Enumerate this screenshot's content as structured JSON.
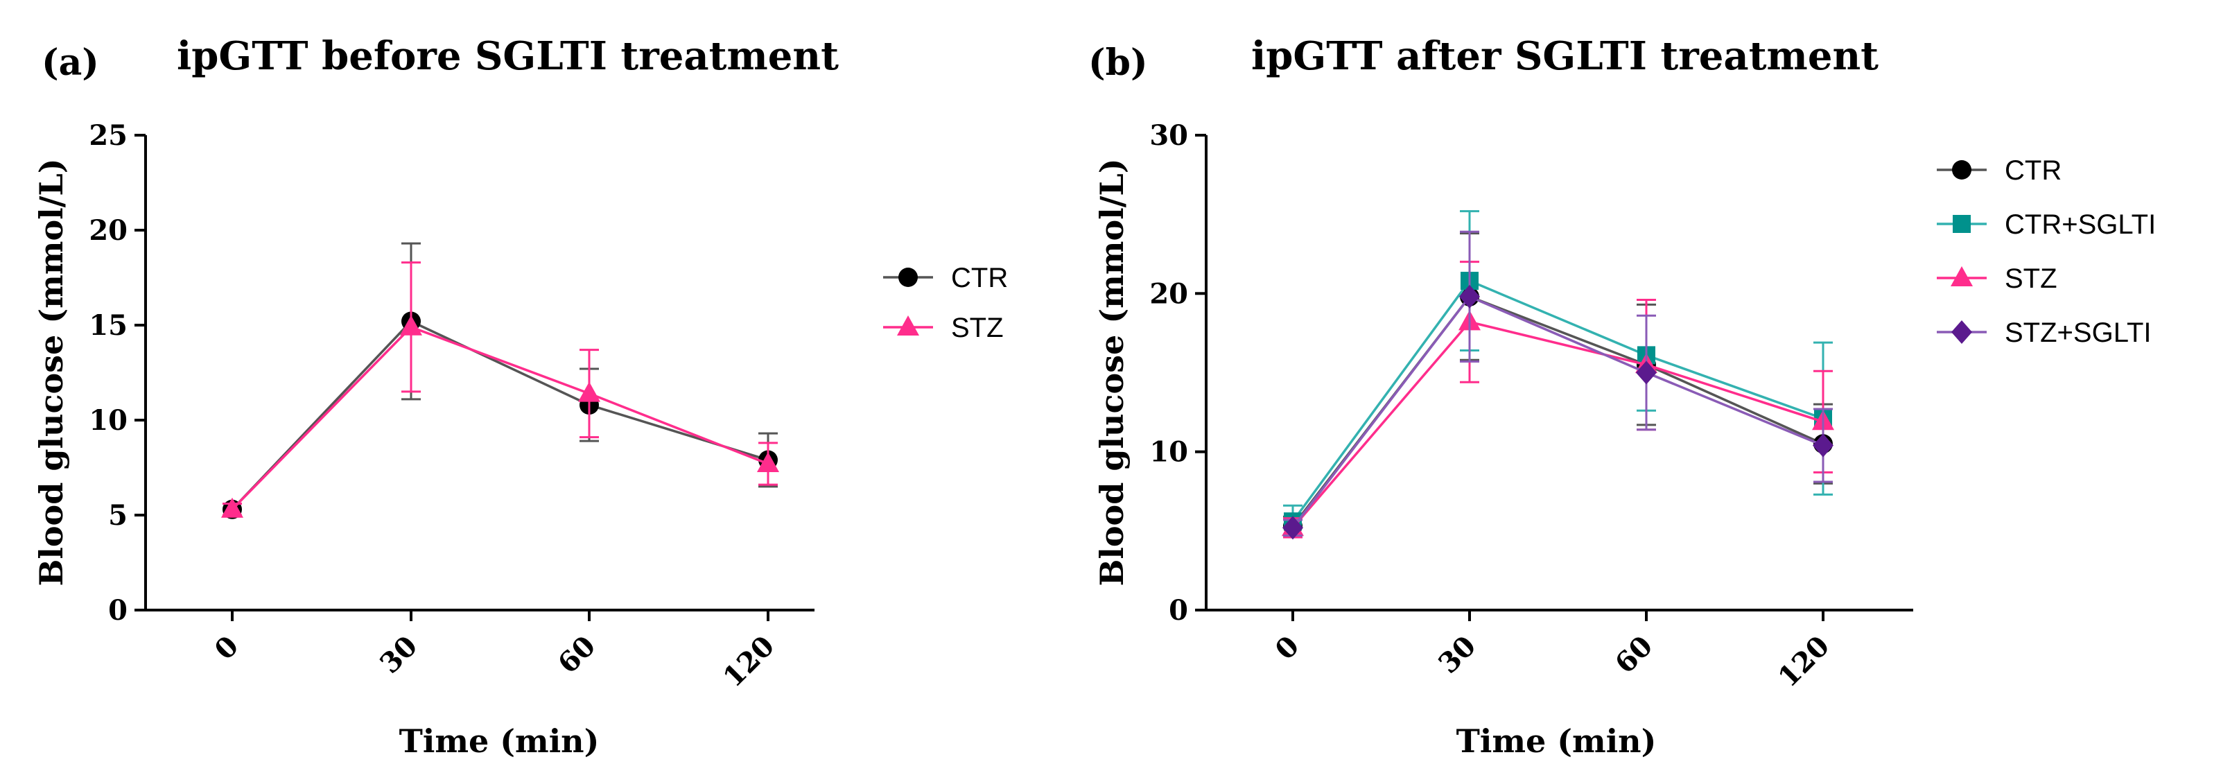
{
  "chart_data": [
    {
      "panel_label": "(a)",
      "type": "line",
      "title": "ipGTT before SGLTI treatment",
      "xlabel": "Time (min)",
      "ylabel": "Blood glucose (mmol/L)",
      "categories": [
        "0",
        "30",
        "60",
        "120"
      ],
      "ylim": [
        0,
        25
      ],
      "yticks": [
        0,
        5,
        10,
        15,
        20,
        25
      ],
      "legend_position": "right",
      "series": [
        {
          "name": "CTR",
          "marker": "circle",
          "color": "#000000",
          "line_color": "#555555",
          "values": [
            5.3,
            15.2,
            10.8,
            7.9
          ],
          "errors": [
            0.3,
            4.1,
            1.9,
            1.4
          ]
        },
        {
          "name": "STZ",
          "marker": "triangle",
          "color": "#ff2d8c",
          "line_color": "#ff2d8c",
          "values": [
            5.3,
            14.9,
            11.4,
            7.7
          ],
          "errors": [
            0.3,
            3.4,
            2.3,
            1.1
          ]
        }
      ]
    },
    {
      "panel_label": "(b)",
      "type": "line",
      "title": "ipGTT after SGLTI treatment",
      "xlabel": "Time (min)",
      "ylabel": "Blood glucose (mmol/L)",
      "categories": [
        "0",
        "30",
        "60",
        "120"
      ],
      "ylim": [
        0,
        30
      ],
      "yticks": [
        0,
        10,
        20,
        30
      ],
      "legend_position": "right",
      "series": [
        {
          "name": "CTR",
          "marker": "circle",
          "color": "#000000",
          "line_color": "#555555",
          "values": [
            5.3,
            19.8,
            15.5,
            10.5
          ],
          "errors": [
            0.6,
            4.0,
            3.8,
            2.5
          ]
        },
        {
          "name": "CTR+SGLTI",
          "marker": "square",
          "color": "#00918c",
          "line_color": "#33b2b0",
          "values": [
            5.6,
            20.8,
            16.1,
            12.1
          ],
          "errors": [
            1.0,
            4.4,
            3.5,
            4.8
          ]
        },
        {
          "name": "STZ",
          "marker": "triangle",
          "color": "#ff2d8c",
          "line_color": "#ff2d8c",
          "values": [
            5.2,
            18.2,
            15.5,
            11.9
          ],
          "errors": [
            0.6,
            3.8,
            4.1,
            3.2
          ]
        },
        {
          "name": "STZ+SGLTI",
          "marker": "diamond",
          "color": "#5b1a8e",
          "line_color": "#8a5bb6",
          "values": [
            5.2,
            19.8,
            15.0,
            10.4
          ],
          "errors": [
            0.5,
            4.1,
            3.6,
            2.3
          ]
        }
      ]
    }
  ]
}
